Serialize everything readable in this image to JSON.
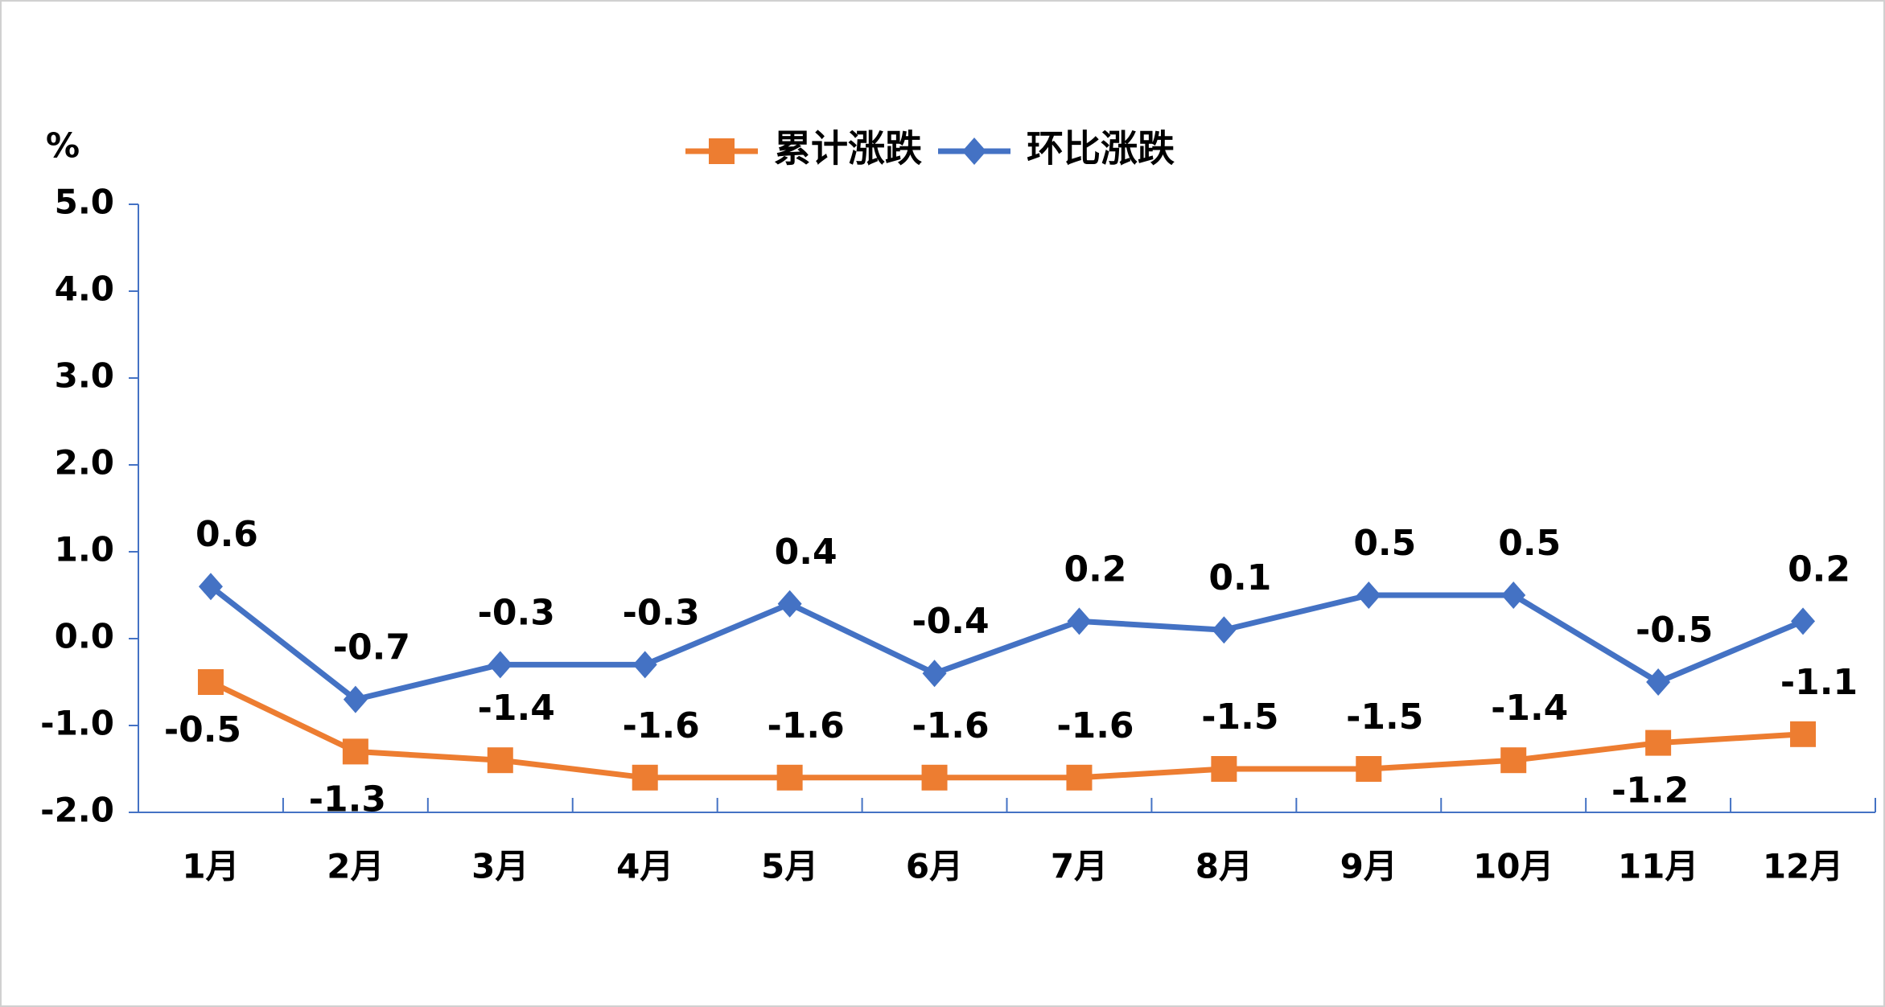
{
  "chart_data": {
    "type": "line",
    "y_unit": "%",
    "categories": [
      "1月",
      "2月",
      "3月",
      "4月",
      "5月",
      "6月",
      "7月",
      "8月",
      "9月",
      "10月",
      "11月",
      "12月"
    ],
    "series": [
      {
        "name": "累计涨跌",
        "color": "#ed7d31",
        "marker": "square",
        "values": [
          -0.5,
          -1.3,
          -1.4,
          -1.6,
          -1.6,
          -1.6,
          -1.6,
          -1.5,
          -1.5,
          -1.4,
          -1.2,
          -1.1
        ]
      },
      {
        "name": "环比涨跌",
        "color": "#4472c4",
        "marker": "diamond",
        "values": [
          0.6,
          -0.7,
          -0.3,
          -0.3,
          0.4,
          -0.4,
          0.2,
          0.1,
          0.5,
          0.5,
          -0.5,
          0.2
        ]
      }
    ],
    "ylim": [
      -2,
      5
    ],
    "yticks": [
      {
        "value": -2,
        "label": "-2.0"
      },
      {
        "value": -1,
        "label": "-1.0"
      },
      {
        "value": 0,
        "label": "0.0"
      },
      {
        "value": 1,
        "label": "1.0"
      },
      {
        "value": 2,
        "label": "2.0"
      },
      {
        "value": 3,
        "label": "3.0"
      },
      {
        "value": 4,
        "label": "4.0"
      },
      {
        "value": 5,
        "label": "5.0"
      }
    ],
    "grid": false,
    "legend": "top"
  }
}
